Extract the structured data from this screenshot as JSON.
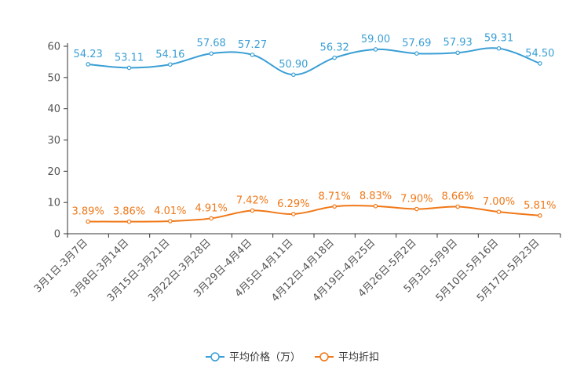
{
  "chart_data": {
    "type": "line",
    "title": "",
    "xlabel": "",
    "ylabel": "",
    "ylim": [
      0,
      60
    ],
    "yticks": [
      0,
      10,
      20,
      30,
      40,
      50,
      60
    ],
    "grid": false,
    "legend_position": "bottom",
    "categories": [
      "3月1日-3月7日",
      "3月8日-3月14日",
      "3月15日-3月21日",
      "3月22日-3月28日",
      "3月29日-4月4日",
      "4月5日-4月11日",
      "4月12日-4月18日",
      "4月19日-4月25日",
      "4月26日-5月2日",
      "5月3日-5月9日",
      "5月10日-5月16日",
      "5月17日-5月23日"
    ],
    "series": [
      {
        "name": "平均价格（万）",
        "color": "#3a9fd5",
        "values": [
          54.23,
          53.11,
          54.16,
          57.68,
          57.27,
          50.9,
          56.32,
          59.0,
          57.69,
          57.93,
          59.31,
          54.5
        ],
        "labels": [
          "54.23",
          "53.11",
          "54.16",
          "57.68",
          "57.27",
          "50.90",
          "56.32",
          "59.00",
          "57.69",
          "57.93",
          "59.31",
          "54.50"
        ]
      },
      {
        "name": "平均折扣",
        "color": "#f07818",
        "values": [
          3.89,
          3.86,
          4.01,
          4.91,
          7.42,
          6.29,
          8.71,
          8.83,
          7.9,
          8.66,
          7.0,
          5.81
        ],
        "labels": [
          "3.89%",
          "3.86%",
          "4.01%",
          "4.91%",
          "7.42%",
          "6.29%",
          "8.71%",
          "8.83%",
          "7.90%",
          "8.66%",
          "7.00%",
          "5.81%"
        ]
      }
    ]
  }
}
